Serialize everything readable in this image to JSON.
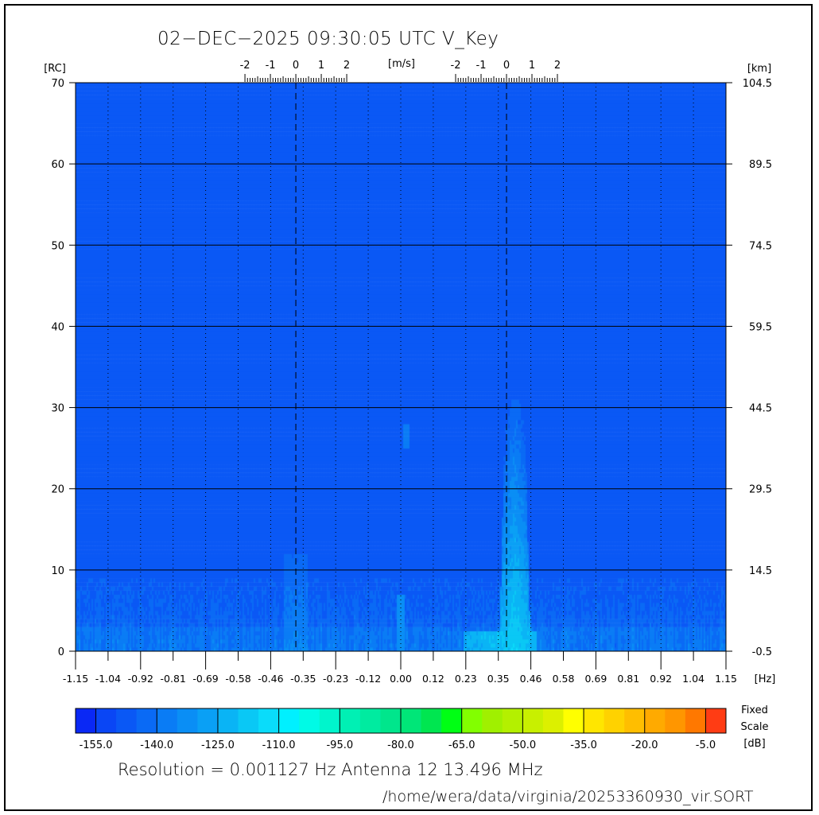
{
  "title": "02−DEC−2025 09:30:05 UTC   V_Key",
  "footer": {
    "resolution": "Resolution = 0.001127 Hz   Antenna 12   13.496 MHz",
    "path": "/home/wera/data/virginia/20253360930_vir.SORT"
  },
  "chart_data": {
    "type": "heatmap",
    "title": "02-DEC-2025 09:30:05 UTC   V_Key",
    "xlabel": "[Hz]",
    "ylabel_left": "[RC]",
    "ylabel_right": "[km]",
    "top_axis_label": "[m/s]",
    "xlim": [
      -1.15,
      1.15
    ],
    "ylim": [
      0,
      70
    ],
    "x_ticks": [
      "-1.15",
      "-1.04",
      "-0.92",
      "-0.81",
      "-0.69",
      "-0.58",
      "-0.46",
      "-0.35",
      "-0.23",
      "-0.12",
      "0.00",
      "0.12",
      "0.23",
      "0.35",
      "0.46",
      "0.58",
      "0.69",
      "0.81",
      "0.92",
      "1.04",
      "1.15"
    ],
    "y_ticks_left": [
      "0",
      "10",
      "20",
      "30",
      "40",
      "50",
      "60",
      "70"
    ],
    "y_ticks_right": [
      "-0.5",
      "14.5",
      "29.5",
      "44.5",
      "59.5",
      "74.5",
      "89.5",
      "104.5"
    ],
    "bragg_lines_hz": [
      -0.371,
      0.374
    ],
    "top_scale_ticks": [
      "-2",
      "-1",
      "0",
      "1",
      "2"
    ],
    "grid": true,
    "colorbar": {
      "min": -160,
      "max": 0,
      "step": 5,
      "tick_labels": [
        "-155.0",
        "-140.0",
        "-125.0",
        "-110.0",
        "-95.0",
        "-80.0",
        "-65.0",
        "-50.0",
        "-35.0",
        "-20.0",
        "-5.0"
      ],
      "label_lines": [
        "Fixed",
        "Scale",
        "[dB]"
      ],
      "colors": [
        "#0a28f5",
        "#0a46f5",
        "#0a58f5",
        "#0a6af5",
        "#0a7cf5",
        "#0a8ef5",
        "#0aa0f5",
        "#0ab4f5",
        "#0ac8f5",
        "#0adcfa",
        "#00f0ff",
        "#00fae6",
        "#00f5cc",
        "#00f0b4",
        "#00eba0",
        "#00e68c",
        "#00e678",
        "#00e650",
        "#00ff14",
        "#82ff00",
        "#a0f000",
        "#b4f000",
        "#c8f000",
        "#dcf000",
        "#ffff00",
        "#ffe600",
        "#ffd200",
        "#ffbe00",
        "#ffaa00",
        "#ff9600",
        "#ff7800",
        "#ff3c14"
      ]
    },
    "background_level_db": -150
  }
}
